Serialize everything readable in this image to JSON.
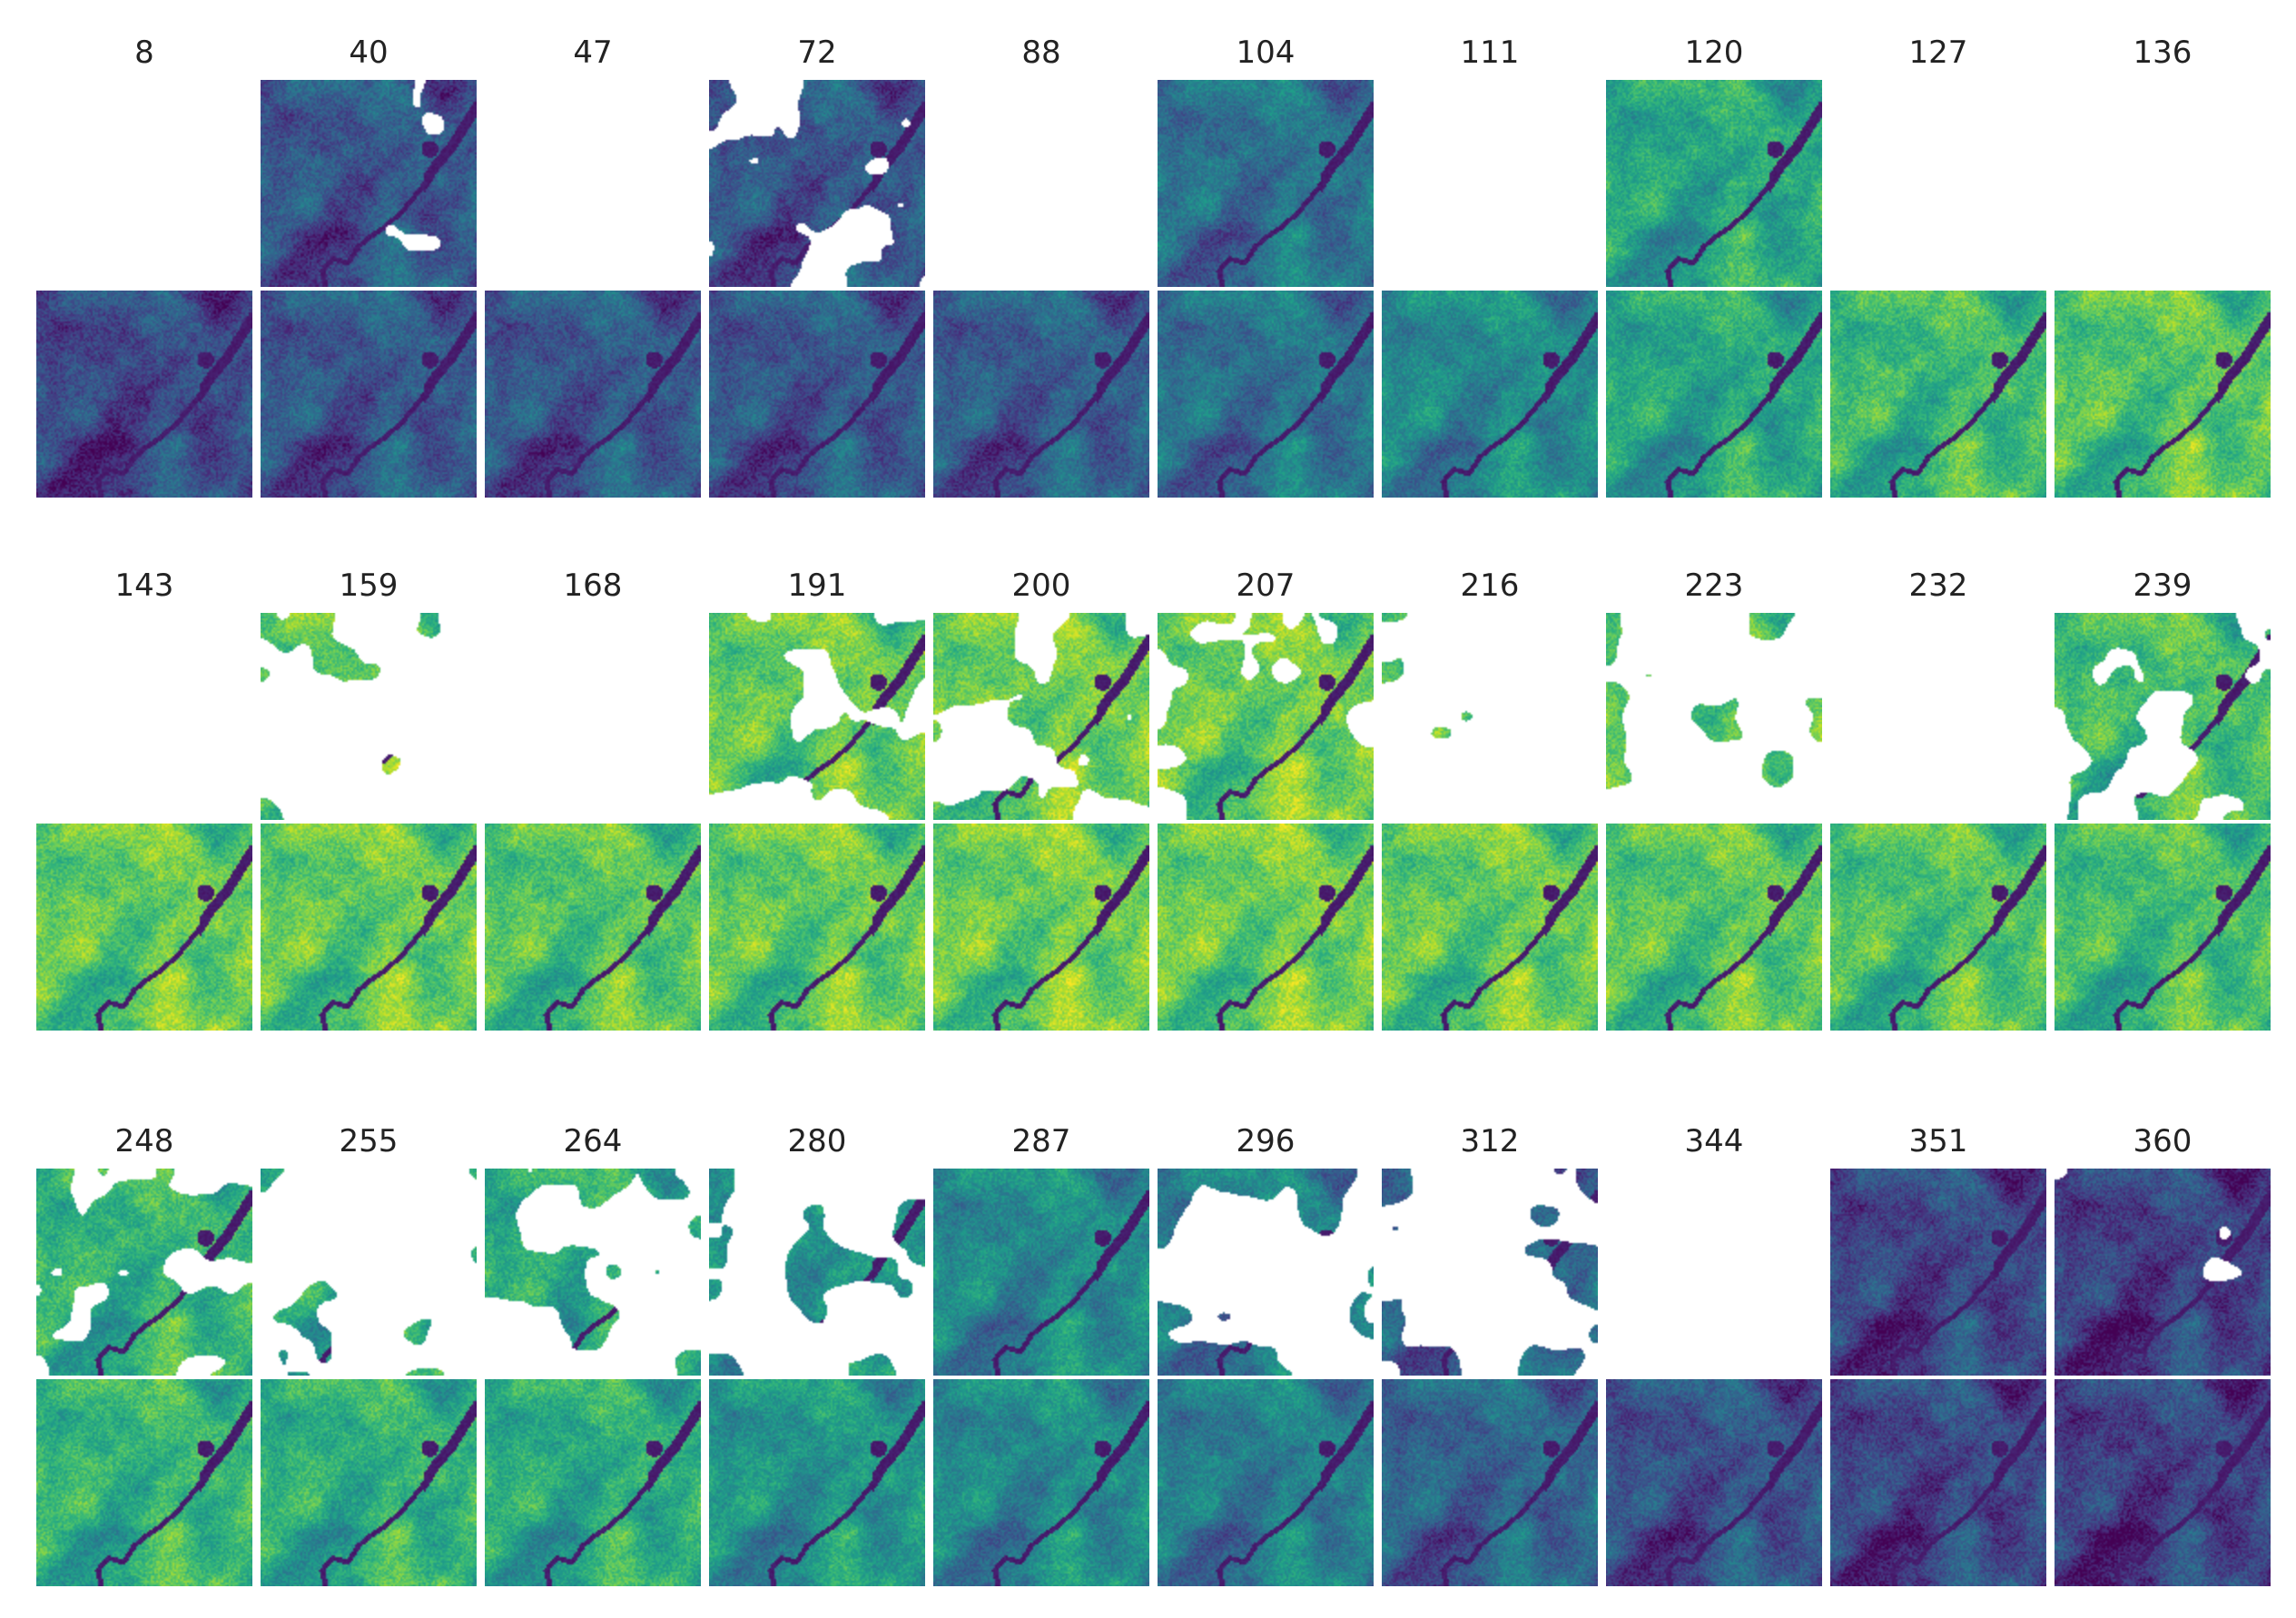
{
  "figure": {
    "panel_labels": [
      "8",
      "40",
      "47",
      "72",
      "88",
      "104",
      "111",
      "120",
      "127",
      "136",
      "143",
      "159",
      "168",
      "191",
      "200",
      "207",
      "216",
      "223",
      "232",
      "239",
      "248",
      "255",
      "264",
      "280",
      "287",
      "296",
      "312",
      "344",
      "351",
      "360"
    ],
    "observed_coverage": [
      0.0,
      0.97,
      0.0,
      0.78,
      0.0,
      1.0,
      0.0,
      1.0,
      0.0,
      0.0,
      0.0,
      0.12,
      0.0,
      0.75,
      0.68,
      0.85,
      0.02,
      0.15,
      0.0,
      0.72,
      0.8,
      0.08,
      0.35,
      0.25,
      1.0,
      0.3,
      0.22,
      0.0,
      1.0,
      0.98
    ],
    "greenness_level": [
      0.25,
      0.3,
      0.3,
      0.3,
      0.32,
      0.4,
      0.5,
      0.62,
      0.7,
      0.75,
      0.78,
      0.78,
      0.75,
      0.78,
      0.8,
      0.8,
      0.78,
      0.76,
      0.74,
      0.72,
      0.68,
      0.66,
      0.64,
      0.55,
      0.5,
      0.45,
      0.35,
      0.28,
      0.24,
      0.22
    ],
    "colormap": "viridis",
    "colors": {
      "background": "#ffffff",
      "viridis_low": "#440154",
      "viridis_mid": "#21918c",
      "viridis_high": "#fde725"
    }
  }
}
